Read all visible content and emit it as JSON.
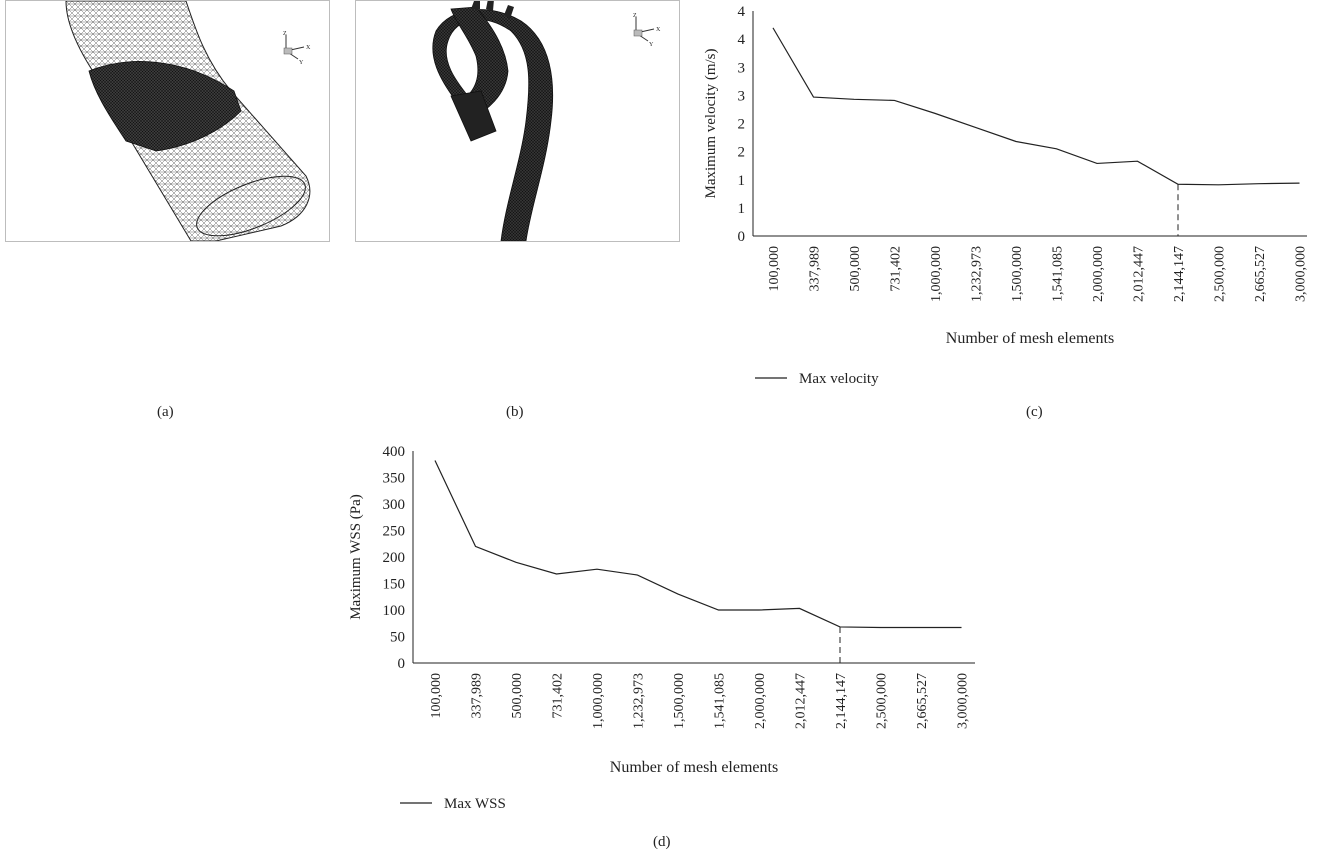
{
  "panels": {
    "a": {
      "caption": "(a)"
    },
    "b": {
      "caption": "(b)"
    },
    "c": {
      "caption": "(c)"
    },
    "d": {
      "caption": "(d)"
    }
  },
  "triad": {
    "z": "Z",
    "x": "X",
    "y": "Y"
  },
  "colors": {
    "line": "#222222",
    "mesh": "#1a1a1a",
    "mesh_dense": "#111111",
    "axis": "#222222"
  },
  "chart_data": [
    {
      "type": "line",
      "categories": [
        "100,000",
        "337,989",
        "500,000",
        "731,402",
        "1,000,000",
        "1,232,973",
        "1,500,000",
        "1,541,085",
        "2,000,000",
        "2,012,447",
        "2,144,147",
        "2,500,000",
        "2,665,527",
        "3,000,000"
      ],
      "series": [
        {
          "name": "Max velocity",
          "values": [
            3.7,
            2.47,
            2.43,
            2.41,
            2.18,
            1.93,
            1.68,
            1.55,
            1.29,
            1.33,
            0.92,
            0.91,
            0.93,
            0.94
          ]
        }
      ],
      "ylabel": "Maximum velocity (m/s)",
      "xlabel": "Number of mesh elements",
      "ylim": [
        0,
        4
      ],
      "ytick_values": [
        0,
        0.5,
        1,
        1.5,
        2,
        2.5,
        3,
        3.5,
        4
      ],
      "ytick_labels": [
        "0",
        "1",
        "1",
        "2",
        "2",
        "3",
        "3",
        "4",
        "4"
      ],
      "marker_category": "2,144,147",
      "legend": "bottom-left",
      "grid": false
    },
    {
      "type": "line",
      "categories": [
        "100,000",
        "337,989",
        "500,000",
        "731,402",
        "1,000,000",
        "1,232,973",
        "1,500,000",
        "1,541,085",
        "2,000,000",
        "2,012,447",
        "2,144,147",
        "2,500,000",
        "2,665,527",
        "3,000,000"
      ],
      "series": [
        {
          "name": "Max WSS",
          "values": [
            382,
            220,
            190,
            168,
            177,
            166,
            130,
            100,
            100,
            103,
            68,
            67,
            67,
            67
          ]
        }
      ],
      "ylabel": "Maximum WSS (Pa)",
      "xlabel": "Number of mesh elements",
      "ylim": [
        0,
        400
      ],
      "ytick_values": [
        0,
        50,
        100,
        150,
        200,
        250,
        300,
        350,
        400
      ],
      "ytick_labels": [
        "0",
        "50",
        "100",
        "150",
        "200",
        "250",
        "300",
        "350",
        "400"
      ],
      "marker_category": "2,144,147",
      "legend": "bottom-left",
      "grid": false
    }
  ]
}
